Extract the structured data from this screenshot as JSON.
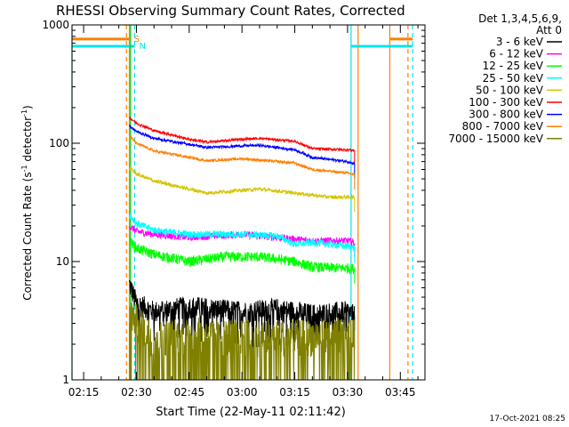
{
  "chart_data": {
    "type": "line",
    "title": "RHESSI Observing Summary Count Rates, Corrected",
    "xlabel": "Start Time (22-May-11 02:11:42)",
    "ylabel": "Corrected Count Rate (s",
    "ylabel_sup1": "-1",
    "ylabel_mid": " detector",
    "ylabel_sup2": "-1",
    "ylabel_end": ")",
    "yscale": "log",
    "ylim": [
      1,
      1000
    ],
    "xlim": [
      "02:11:42",
      "03:52:00"
    ],
    "x_ticks": [
      "02:15",
      "02:30",
      "02:45",
      "03:00",
      "03:15",
      "03:30",
      "03:45"
    ],
    "y_ticks": [
      "1",
      "10",
      "100",
      "1000"
    ],
    "grid": false,
    "legend_position": "right",
    "legend_header": [
      "Det 1,3,4,5,6,9,",
      "Att 0"
    ],
    "timestamp": "17-Oct-2021 08:25",
    "markers": [
      {
        "label": "S",
        "color": "#ff7f00",
        "day_bar": [
          [
            "02:11:42",
            "02:28:00"
          ],
          [
            "03:42:00",
            "03:48:30"
          ]
        ],
        "value": 760,
        "lines": [
          {
            "time": "02:27:10",
            "style": "dashed"
          },
          {
            "time": "02:28:00",
            "style": "solid"
          },
          {
            "time": "03:33:00",
            "style": "solid"
          },
          {
            "time": "03:42:00",
            "style": "solid"
          },
          {
            "time": "03:47:10",
            "style": "dashed"
          }
        ]
      },
      {
        "label": "N",
        "color": "#00e5ee",
        "day_bar": [
          [
            "02:11:42",
            "02:29:30"
          ],
          [
            "03:31:00",
            "03:48:30"
          ]
        ],
        "value": 660,
        "lines": [
          {
            "time": "02:11:42",
            "style": "solid"
          },
          {
            "time": "02:29:30",
            "style": "dashed"
          },
          {
            "time": "03:31:00",
            "style": "solid"
          },
          {
            "time": "03:48:30",
            "style": "dashed"
          }
        ]
      }
    ],
    "green_line": {
      "time": "02:28:20",
      "color": "#00c800"
    },
    "series": [
      {
        "name": "3 - 6 keV",
        "color": "#000000",
        "points": [
          [
            "02:28",
            "6.5"
          ],
          [
            "02:30",
            "4.5"
          ],
          [
            "02:35",
            "3.8"
          ],
          [
            "02:45",
            "4.2"
          ],
          [
            "03:00",
            "3.8"
          ],
          [
            "03:10",
            "4.0"
          ],
          [
            "03:20",
            "3.6"
          ],
          [
            "03:30",
            "3.8"
          ],
          [
            "03:32",
            "3.5"
          ]
        ]
      },
      {
        "name": "6 - 12 keV",
        "color": "#ff00ff",
        "points": [
          [
            "02:28",
            "20"
          ],
          [
            "02:30",
            "18"
          ],
          [
            "02:35",
            "17"
          ],
          [
            "02:45",
            "16"
          ],
          [
            "03:00",
            "17"
          ],
          [
            "03:10",
            "16"
          ],
          [
            "03:15",
            "15.5"
          ],
          [
            "03:20",
            "15"
          ],
          [
            "03:30",
            "15"
          ],
          [
            "03:32",
            "14.5"
          ]
        ]
      },
      {
        "name": "12 - 25 keV",
        "color": "#00ff00",
        "points": [
          [
            "02:28",
            "15"
          ],
          [
            "02:30",
            "13"
          ],
          [
            "02:35",
            "11.5"
          ],
          [
            "02:45",
            "10"
          ],
          [
            "02:55",
            "11"
          ],
          [
            "03:05",
            "11"
          ],
          [
            "03:15",
            "10"
          ],
          [
            "03:20",
            "9"
          ],
          [
            "03:30",
            "8.8"
          ],
          [
            "03:32",
            "8.7"
          ]
        ]
      },
      {
        "name": "25 - 50 keV",
        "color": "#00ffff",
        "points": [
          [
            "02:28",
            "25"
          ],
          [
            "02:30",
            "21"
          ],
          [
            "02:35",
            "18.5"
          ],
          [
            "02:45",
            "17"
          ],
          [
            "03:00",
            "17"
          ],
          [
            "03:10",
            "16.5"
          ],
          [
            "03:15",
            "14"
          ],
          [
            "03:20",
            "14.5"
          ],
          [
            "03:30",
            "13.5"
          ],
          [
            "03:32",
            "13"
          ]
        ]
      },
      {
        "name": "50 - 100 keV",
        "color": "#d4c400",
        "points": [
          [
            "02:28",
            "62"
          ],
          [
            "02:30",
            "55"
          ],
          [
            "02:35",
            "48"
          ],
          [
            "02:45",
            "41"
          ],
          [
            "02:50",
            "38"
          ],
          [
            "03:00",
            "40"
          ],
          [
            "03:05",
            "41"
          ],
          [
            "03:15",
            "38"
          ],
          [
            "03:25",
            "35"
          ],
          [
            "03:32",
            "35"
          ]
        ]
      },
      {
        "name": "100 - 300 keV",
        "color": "#ff0000",
        "points": [
          [
            "02:28",
            "165"
          ],
          [
            "02:30",
            "148"
          ],
          [
            "02:35",
            "128"
          ],
          [
            "02:45",
            "108"
          ],
          [
            "02:50",
            "102"
          ],
          [
            "03:00",
            "108"
          ],
          [
            "03:05",
            "110"
          ],
          [
            "03:15",
            "104"
          ],
          [
            "03:20",
            "90"
          ],
          [
            "03:30",
            "88"
          ],
          [
            "03:32",
            "87"
          ]
        ]
      },
      {
        "name": "300 - 800 keV",
        "color": "#0000ff",
        "points": [
          [
            "02:28",
            "140"
          ],
          [
            "02:30",
            "126"
          ],
          [
            "02:35",
            "110"
          ],
          [
            "02:45",
            "98"
          ],
          [
            "02:50",
            "92"
          ],
          [
            "03:00",
            "95"
          ],
          [
            "03:05",
            "96"
          ],
          [
            "03:15",
            "88"
          ],
          [
            "03:20",
            "76"
          ],
          [
            "03:30",
            "70"
          ],
          [
            "03:32",
            "67"
          ]
        ]
      },
      {
        "name": "800 - 7000 keV",
        "color": "#ff7f00",
        "points": [
          [
            "02:28",
            "115"
          ],
          [
            "02:30",
            "100"
          ],
          [
            "02:35",
            "86"
          ],
          [
            "02:45",
            "76"
          ],
          [
            "02:50",
            "71"
          ],
          [
            "03:00",
            "74"
          ],
          [
            "03:05",
            "72"
          ],
          [
            "03:15",
            "68"
          ],
          [
            "03:20",
            "60"
          ],
          [
            "03:30",
            "56"
          ],
          [
            "03:32",
            "54"
          ]
        ]
      },
      {
        "name": "7000 - 15000 keV",
        "color": "#808000",
        "points": [
          [
            "02:28",
            "4"
          ],
          [
            "02:30",
            "3.2"
          ],
          [
            "02:35",
            "2.3"
          ],
          [
            "02:45",
            "2.5"
          ],
          [
            "03:00",
            "2.4"
          ],
          [
            "03:10",
            "2.4"
          ],
          [
            "03:20",
            "2.4"
          ],
          [
            "03:30",
            "2.5"
          ],
          [
            "03:32",
            "2.4"
          ]
        ]
      }
    ]
  }
}
